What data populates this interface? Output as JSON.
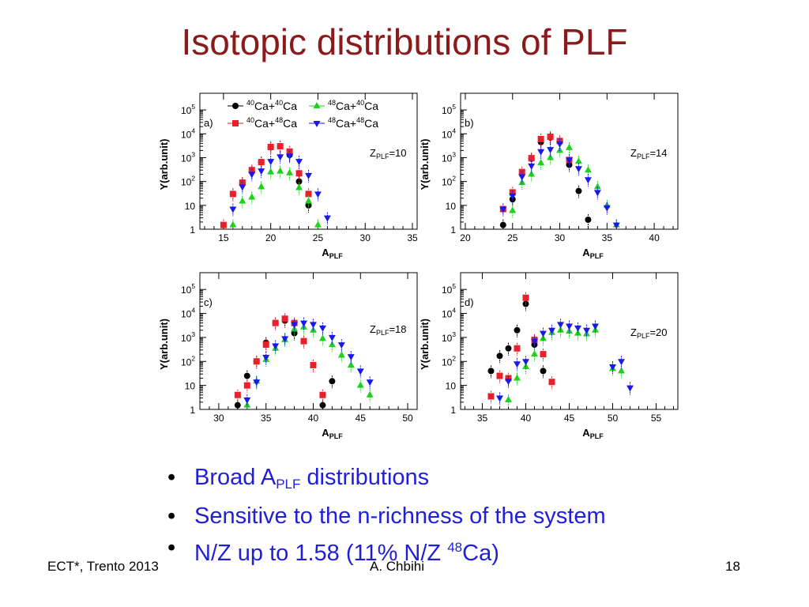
{
  "slide": {
    "title": "Isotopic distributions of PLF",
    "bullets": [
      {
        "pre": "Broad A",
        "sub": "PLF",
        "post": " distributions"
      },
      {
        "pre": "Sensitive to the n-richness of the system",
        "sub": "",
        "post": ""
      },
      {
        "pre": "N/Z up to 1.58 (11% N/Z ",
        "sup": "48",
        "post": "Ca)"
      }
    ],
    "footer": {
      "left": "ECT*, Trento 2013",
      "center": "A. Chbihi",
      "right": "18"
    }
  },
  "colors": {
    "title": "#8b1a1a",
    "bullet_text": "#1f1fd8",
    "ca40_ca40": "#000000",
    "ca40_ca48": "#e8202a",
    "ca48_ca40": "#1fd01f",
    "ca48_ca48": "#1a1ae6"
  },
  "chart_data": [
    {
      "type": "scatter",
      "panel_label": "a)",
      "annotation": "Z=10",
      "annotation_sub": "PLF",
      "xlabel": "A",
      "xlabel_sub": "PLF",
      "ylabel": "Y(arb.unit)",
      "xlim": [
        12.5,
        35.5
      ],
      "xticks": [
        15,
        20,
        25,
        30,
        35
      ],
      "ylim": [
        1,
        500000
      ],
      "yscale": "log",
      "yticks": [
        "1",
        "10",
        "10^2",
        "10^3",
        "10^4",
        "10^5"
      ],
      "legend": {
        "placement": "top",
        "entries": [
          {
            "series": 0,
            "pre1": "40",
            "mid": "Ca+",
            "pre2": "40",
            "post": "Ca"
          },
          {
            "series": 2,
            "pre1": "48",
            "mid": "Ca+",
            "pre2": "40",
            "post": "Ca"
          },
          {
            "series": 1,
            "pre1": "40",
            "mid": "Ca+",
            "pre2": "48",
            "post": "Ca"
          },
          {
            "series": 3,
            "pre1": "48",
            "mid": "Ca+",
            "pre2": "48",
            "post": "Ca"
          }
        ]
      },
      "series": [
        {
          "name": "40Ca+40Ca",
          "x": [
            16,
            17,
            18,
            19,
            20,
            21,
            22,
            23,
            24
          ],
          "y": [
            30,
            85,
            260,
            650,
            2700,
            3000,
            1300,
            100,
            10
          ]
        },
        {
          "name": "40Ca+48Ca",
          "x": [
            15,
            16,
            17,
            18,
            19,
            20,
            21,
            22,
            23,
            24
          ],
          "y": [
            1.5,
            30,
            90,
            300,
            650,
            2800,
            3000,
            1800,
            220,
            30
          ]
        },
        {
          "name": "48Ca+40Ca",
          "x": [
            16,
            17,
            18,
            19,
            20,
            21,
            22,
            23,
            24,
            25
          ],
          "y": [
            1.5,
            15,
            22,
            60,
            250,
            270,
            230,
            55,
            15,
            1.5
          ]
        },
        {
          "name": "48Ca+48Ca",
          "x": [
            16,
            17,
            18,
            19,
            20,
            21,
            22,
            23,
            24,
            25,
            26
          ],
          "y": [
            7,
            60,
            200,
            280,
            700,
            1100,
            1200,
            700,
            180,
            30,
            3
          ]
        }
      ]
    },
    {
      "type": "scatter",
      "panel_label": "b)",
      "annotation": "Z=14",
      "annotation_sub": "PLF",
      "xlabel": "A",
      "xlabel_sub": "PLF",
      "ylabel": "Y(arb.unit)",
      "xlim": [
        19.5,
        42.5
      ],
      "xticks": [
        20,
        25,
        30,
        35,
        40
      ],
      "ylim": [
        1,
        500000
      ],
      "yscale": "log",
      "yticks": [
        "1",
        "10",
        "10^2",
        "10^3",
        "10^4",
        "10^5"
      ],
      "series": [
        {
          "name": "40Ca+40Ca",
          "x": [
            24,
            25,
            26,
            27,
            28,
            29,
            30,
            31,
            32,
            33
          ],
          "y": [
            1.5,
            18,
            200,
            900,
            4500,
            7000,
            5000,
            500,
            40,
            2.5
          ]
        },
        {
          "name": "40Ca+48Ca",
          "x": [
            24,
            25,
            26,
            27,
            28,
            29,
            30,
            31
          ],
          "y": [
            7,
            35,
            250,
            950,
            6000,
            7500,
            5000,
            800
          ]
        },
        {
          "name": "48Ca+40Ca",
          "x": [
            25,
            26,
            27,
            28,
            29,
            30,
            31,
            32,
            33,
            34,
            35,
            36
          ],
          "y": [
            6,
            90,
            200,
            600,
            1000,
            2000,
            2600,
            700,
            300,
            60,
            10,
            1.5
          ]
        },
        {
          "name": "48Ca+48Ca",
          "x": [
            24,
            25,
            26,
            27,
            28,
            29,
            30,
            31,
            32,
            33,
            34,
            35,
            36
          ],
          "y": [
            7,
            25,
            160,
            450,
            1800,
            2200,
            3800,
            800,
            350,
            120,
            35,
            8,
            1.5
          ]
        }
      ]
    },
    {
      "type": "scatter",
      "panel_label": "c)",
      "annotation": "Z=18",
      "annotation_sub": "PLF",
      "xlabel": "A",
      "xlabel_sub": "PLF",
      "ylabel": "Y(arb.unit)",
      "xlim": [
        28,
        51
      ],
      "xticks": [
        30,
        35,
        40,
        45,
        50
      ],
      "ylim": [
        1,
        500000
      ],
      "yscale": "log",
      "yticks": [
        "1",
        "10",
        "10^2",
        "10^3",
        "10^4",
        "10^5"
      ],
      "series": [
        {
          "name": "40Ca+40Ca",
          "x": [
            32,
            33,
            34,
            35,
            36,
            37,
            38,
            39,
            40,
            41,
            42
          ],
          "y": [
            1.5,
            25,
            100,
            600,
            4000,
            5000,
            1500,
            700,
            70,
            1.5,
            15
          ]
        },
        {
          "name": "40Ca+48Ca",
          "x": [
            32,
            33,
            34,
            35,
            36,
            37,
            38,
            39,
            40,
            41
          ],
          "y": [
            4,
            10,
            100,
            500,
            4000,
            6000,
            4000,
            700,
            70,
            4
          ]
        },
        {
          "name": "48Ca+40Ca",
          "x": [
            33,
            34,
            35,
            36,
            37,
            38,
            39,
            40,
            41,
            42,
            43,
            44,
            45,
            46
          ],
          "y": [
            1.5,
            15,
            120,
            350,
            800,
            2200,
            2700,
            2000,
            900,
            500,
            180,
            70,
            10,
            4
          ]
        },
        {
          "name": "48Ca+48Ca",
          "x": [
            33,
            34,
            35,
            36,
            37,
            38,
            39,
            40,
            41,
            42,
            43,
            44,
            45,
            46
          ],
          "y": [
            2.5,
            14,
            150,
            450,
            900,
            3500,
            4000,
            3500,
            2500,
            1000,
            500,
            160,
            40,
            14
          ]
        }
      ]
    },
    {
      "type": "scatter",
      "panel_label": "d)",
      "annotation": "Z=20",
      "annotation_sub": "PLF",
      "xlabel": "A",
      "xlabel_sub": "PLF",
      "ylabel": "Y(arb.unit)",
      "xlim": [
        32.5,
        57.5
      ],
      "xticks": [
        35,
        40,
        45,
        50,
        55
      ],
      "ylim": [
        1,
        500000
      ],
      "yscale": "log",
      "yticks": [
        "1",
        "10",
        "10^2",
        "10^3",
        "10^4",
        "10^5"
      ],
      "series": [
        {
          "name": "40Ca+40Ca",
          "x": [
            36,
            37,
            38,
            39,
            40,
            41,
            42
          ],
          "y": [
            40,
            170,
            350,
            2000,
            25000,
            500,
            40
          ]
        },
        {
          "name": "40Ca+48Ca",
          "x": [
            36,
            37,
            38,
            39,
            40,
            41,
            42,
            43
          ],
          "y": [
            3.5,
            25,
            20,
            350,
            45000,
            800,
            200,
            14
          ]
        },
        {
          "name": "48Ca+40Ca",
          "x": [
            38,
            39,
            40,
            41,
            42,
            43,
            44,
            45,
            46,
            47,
            48,
            50,
            51
          ],
          "y": [
            2.5,
            20,
            60,
            200,
            900,
            1600,
            2000,
            1800,
            1500,
            1400,
            2000,
            50,
            40
          ]
        },
        {
          "name": "48Ca+48Ca",
          "x": [
            37,
            38,
            39,
            40,
            41,
            42,
            43,
            44,
            45,
            46,
            47,
            48,
            50,
            51,
            52
          ],
          "y": [
            3,
            15,
            80,
            100,
            700,
            1500,
            2000,
            3500,
            3000,
            2500,
            2000,
            3000,
            60,
            100,
            8
          ]
        }
      ]
    }
  ]
}
